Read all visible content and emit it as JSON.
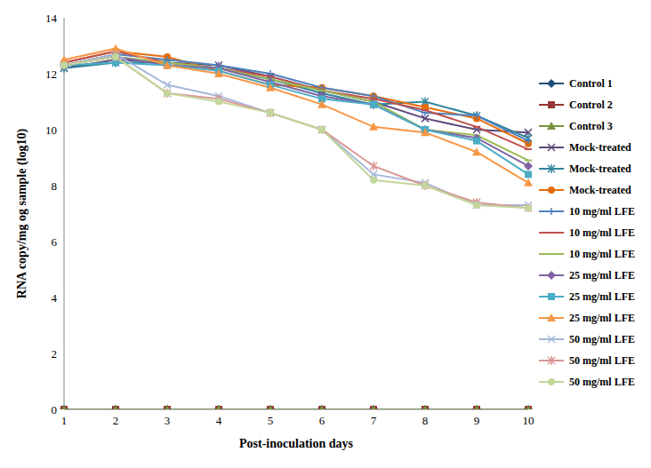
{
  "chart_data": {
    "type": "line",
    "x_label": "Post-inoculation days",
    "y_label": "RNA copy/mg og sample (log10)",
    "categories": [
      "1",
      "2",
      "3",
      "4",
      "5",
      "6",
      "7",
      "8",
      "9",
      "10"
    ],
    "ylim": [
      0,
      14
    ],
    "yticks": [
      0,
      2,
      4,
      6,
      8,
      10,
      12,
      14
    ],
    "grid": false,
    "legend": "right",
    "series": [
      {
        "name": "Control 1",
        "color": "#1F4E79",
        "marker": "diamond",
        "values": [
          0,
          0,
          0,
          0,
          0,
          0,
          0,
          0,
          0,
          0
        ]
      },
      {
        "name": "Control 2",
        "color": "#943634",
        "marker": "square",
        "values": [
          0,
          0,
          0,
          0,
          0,
          0,
          0,
          0,
          0,
          0
        ]
      },
      {
        "name": "Control 3",
        "color": "#76923C",
        "marker": "triangle",
        "values": [
          0,
          0,
          0,
          0,
          0,
          0,
          0,
          0,
          0,
          0
        ]
      },
      {
        "name": "Mock-treated",
        "color": "#5F497A",
        "marker": "x",
        "values": [
          12.2,
          12.5,
          12.4,
          12.3,
          11.9,
          11.4,
          11.0,
          10.4,
          10.0,
          9.9
        ]
      },
      {
        "name": "Mock-treated",
        "color": "#31849B",
        "marker": "star",
        "values": [
          12.2,
          12.4,
          12.4,
          12.2,
          11.8,
          11.3,
          10.9,
          11.0,
          10.5,
          9.7
        ]
      },
      {
        "name": "Mock-treated",
        "color": "#E46C0A",
        "marker": "circle",
        "values": [
          12.4,
          12.8,
          12.6,
          12.1,
          11.6,
          11.5,
          11.2,
          10.8,
          10.4,
          9.5
        ]
      },
      {
        "name": "10 mg/ml LFE",
        "color": "#4F81BD",
        "marker": "plus",
        "values": [
          12.3,
          12.7,
          12.5,
          12.3,
          12.0,
          11.5,
          11.2,
          10.6,
          10.5,
          9.6
        ]
      },
      {
        "name": "10 mg/ml LFE",
        "color": "#C0504D",
        "marker": "dash",
        "values": [
          12.4,
          12.8,
          12.4,
          12.2,
          11.9,
          11.4,
          11.1,
          10.7,
          10.1,
          9.3
        ]
      },
      {
        "name": "10 mg/ml LFE",
        "color": "#9BBB59",
        "marker": "dash",
        "values": [
          12.3,
          12.6,
          12.4,
          12.2,
          11.8,
          11.4,
          11.0,
          10.0,
          9.8,
          8.9
        ]
      },
      {
        "name": "25 mg/ml LFE",
        "color": "#8064A2",
        "marker": "diamond",
        "values": [
          12.3,
          12.6,
          12.3,
          12.2,
          11.7,
          11.2,
          10.9,
          10.0,
          9.7,
          8.7
        ]
      },
      {
        "name": "25 mg/ml LFE",
        "color": "#4BACC6",
        "marker": "square",
        "values": [
          12.3,
          12.4,
          12.3,
          12.1,
          11.6,
          11.1,
          10.9,
          10.0,
          9.6,
          8.4
        ]
      },
      {
        "name": "25 mg/ml LFE",
        "color": "#F79646",
        "marker": "triangle",
        "values": [
          12.5,
          12.9,
          12.3,
          12.0,
          11.5,
          10.9,
          10.1,
          9.9,
          9.2,
          8.1
        ]
      },
      {
        "name": "50 mg/ml LFE",
        "color": "#A5B8D8",
        "marker": "x",
        "values": [
          12.3,
          12.7,
          11.6,
          11.2,
          10.6,
          10.0,
          8.4,
          8.1,
          7.3,
          7.3
        ]
      },
      {
        "name": "50 mg/ml LFE",
        "color": "#D99694",
        "marker": "star",
        "values": [
          12.3,
          12.6,
          11.3,
          11.1,
          10.6,
          10.0,
          8.7,
          8.0,
          7.4,
          7.2
        ]
      },
      {
        "name": "50 mg/ml LFE",
        "color": "#C3D69B",
        "marker": "circle",
        "values": [
          12.3,
          12.6,
          11.3,
          11.0,
          10.6,
          10.0,
          8.2,
          8.0,
          7.3,
          7.2
        ]
      }
    ]
  }
}
